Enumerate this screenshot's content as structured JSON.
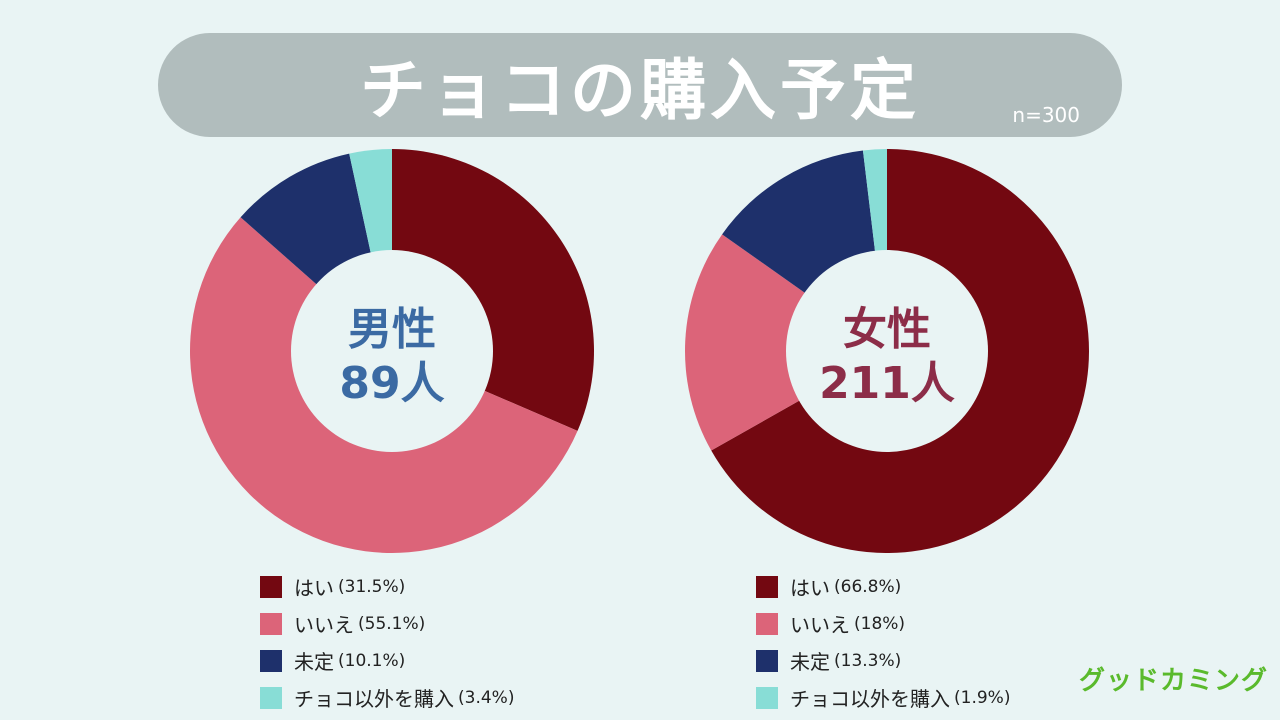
{
  "title": "チョコの購入予定",
  "sample_size": "n=300",
  "logo": "グッドカミング",
  "colors": {
    "yes": "#730811",
    "no": "#dc6479",
    "undecided": "#1e306b",
    "other": "#88ddd6",
    "male_label": "#3b6aa3",
    "female_label": "#8c2d48"
  },
  "chart_data": [
    {
      "type": "pie",
      "group": "男性",
      "count": "89人",
      "categories": [
        "はい",
        "いいえ",
        "未定",
        "チョコ以外を購入"
      ],
      "values": [
        31.5,
        55.1,
        10.1,
        3.4
      ],
      "labels": [
        "(31.5%)",
        "(55.1%)",
        "(10.1%)",
        "(3.4%)"
      ]
    },
    {
      "type": "pie",
      "group": "女性",
      "count": "211人",
      "categories": [
        "はい",
        "いいえ",
        "未定",
        "チョコ以外を購入"
      ],
      "values": [
        66.8,
        18,
        13.3,
        1.9
      ],
      "labels": [
        "(66.8%)",
        "(18%)",
        "(13.3%)",
        "(1.9%)"
      ]
    }
  ]
}
